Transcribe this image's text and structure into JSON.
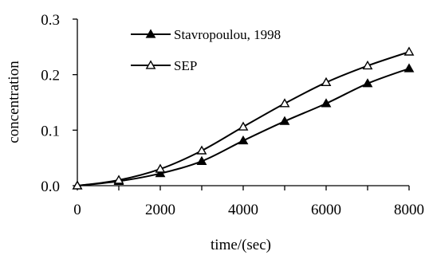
{
  "chart_data": {
    "type": "line",
    "title": "",
    "xlabel": "time/(sec)",
    "ylabel": "concentration",
    "x": [
      0,
      1000,
      2000,
      3000,
      4000,
      5000,
      6000,
      7000,
      8000
    ],
    "xlim": [
      0,
      8000
    ],
    "ylim": [
      0,
      0.3
    ],
    "x_ticks": [
      "0",
      "2000",
      "4000",
      "6000",
      "8000"
    ],
    "y_ticks": [
      "0.0",
      "0.1",
      "0.2",
      "0.3"
    ],
    "grid": false,
    "legend_position": "top-left",
    "series": [
      {
        "name": "Stavropoulou, 1998",
        "marker": "filled-triangle",
        "color": "#000000",
        "values": [
          0.0,
          0.008,
          0.022,
          0.044,
          0.081,
          0.116,
          0.148,
          0.184,
          0.211
        ]
      },
      {
        "name": "SEP",
        "marker": "open-triangle",
        "color": "#000000",
        "values": [
          0.0,
          0.01,
          0.03,
          0.063,
          0.106,
          0.148,
          0.186,
          0.216,
          0.241
        ]
      }
    ]
  }
}
